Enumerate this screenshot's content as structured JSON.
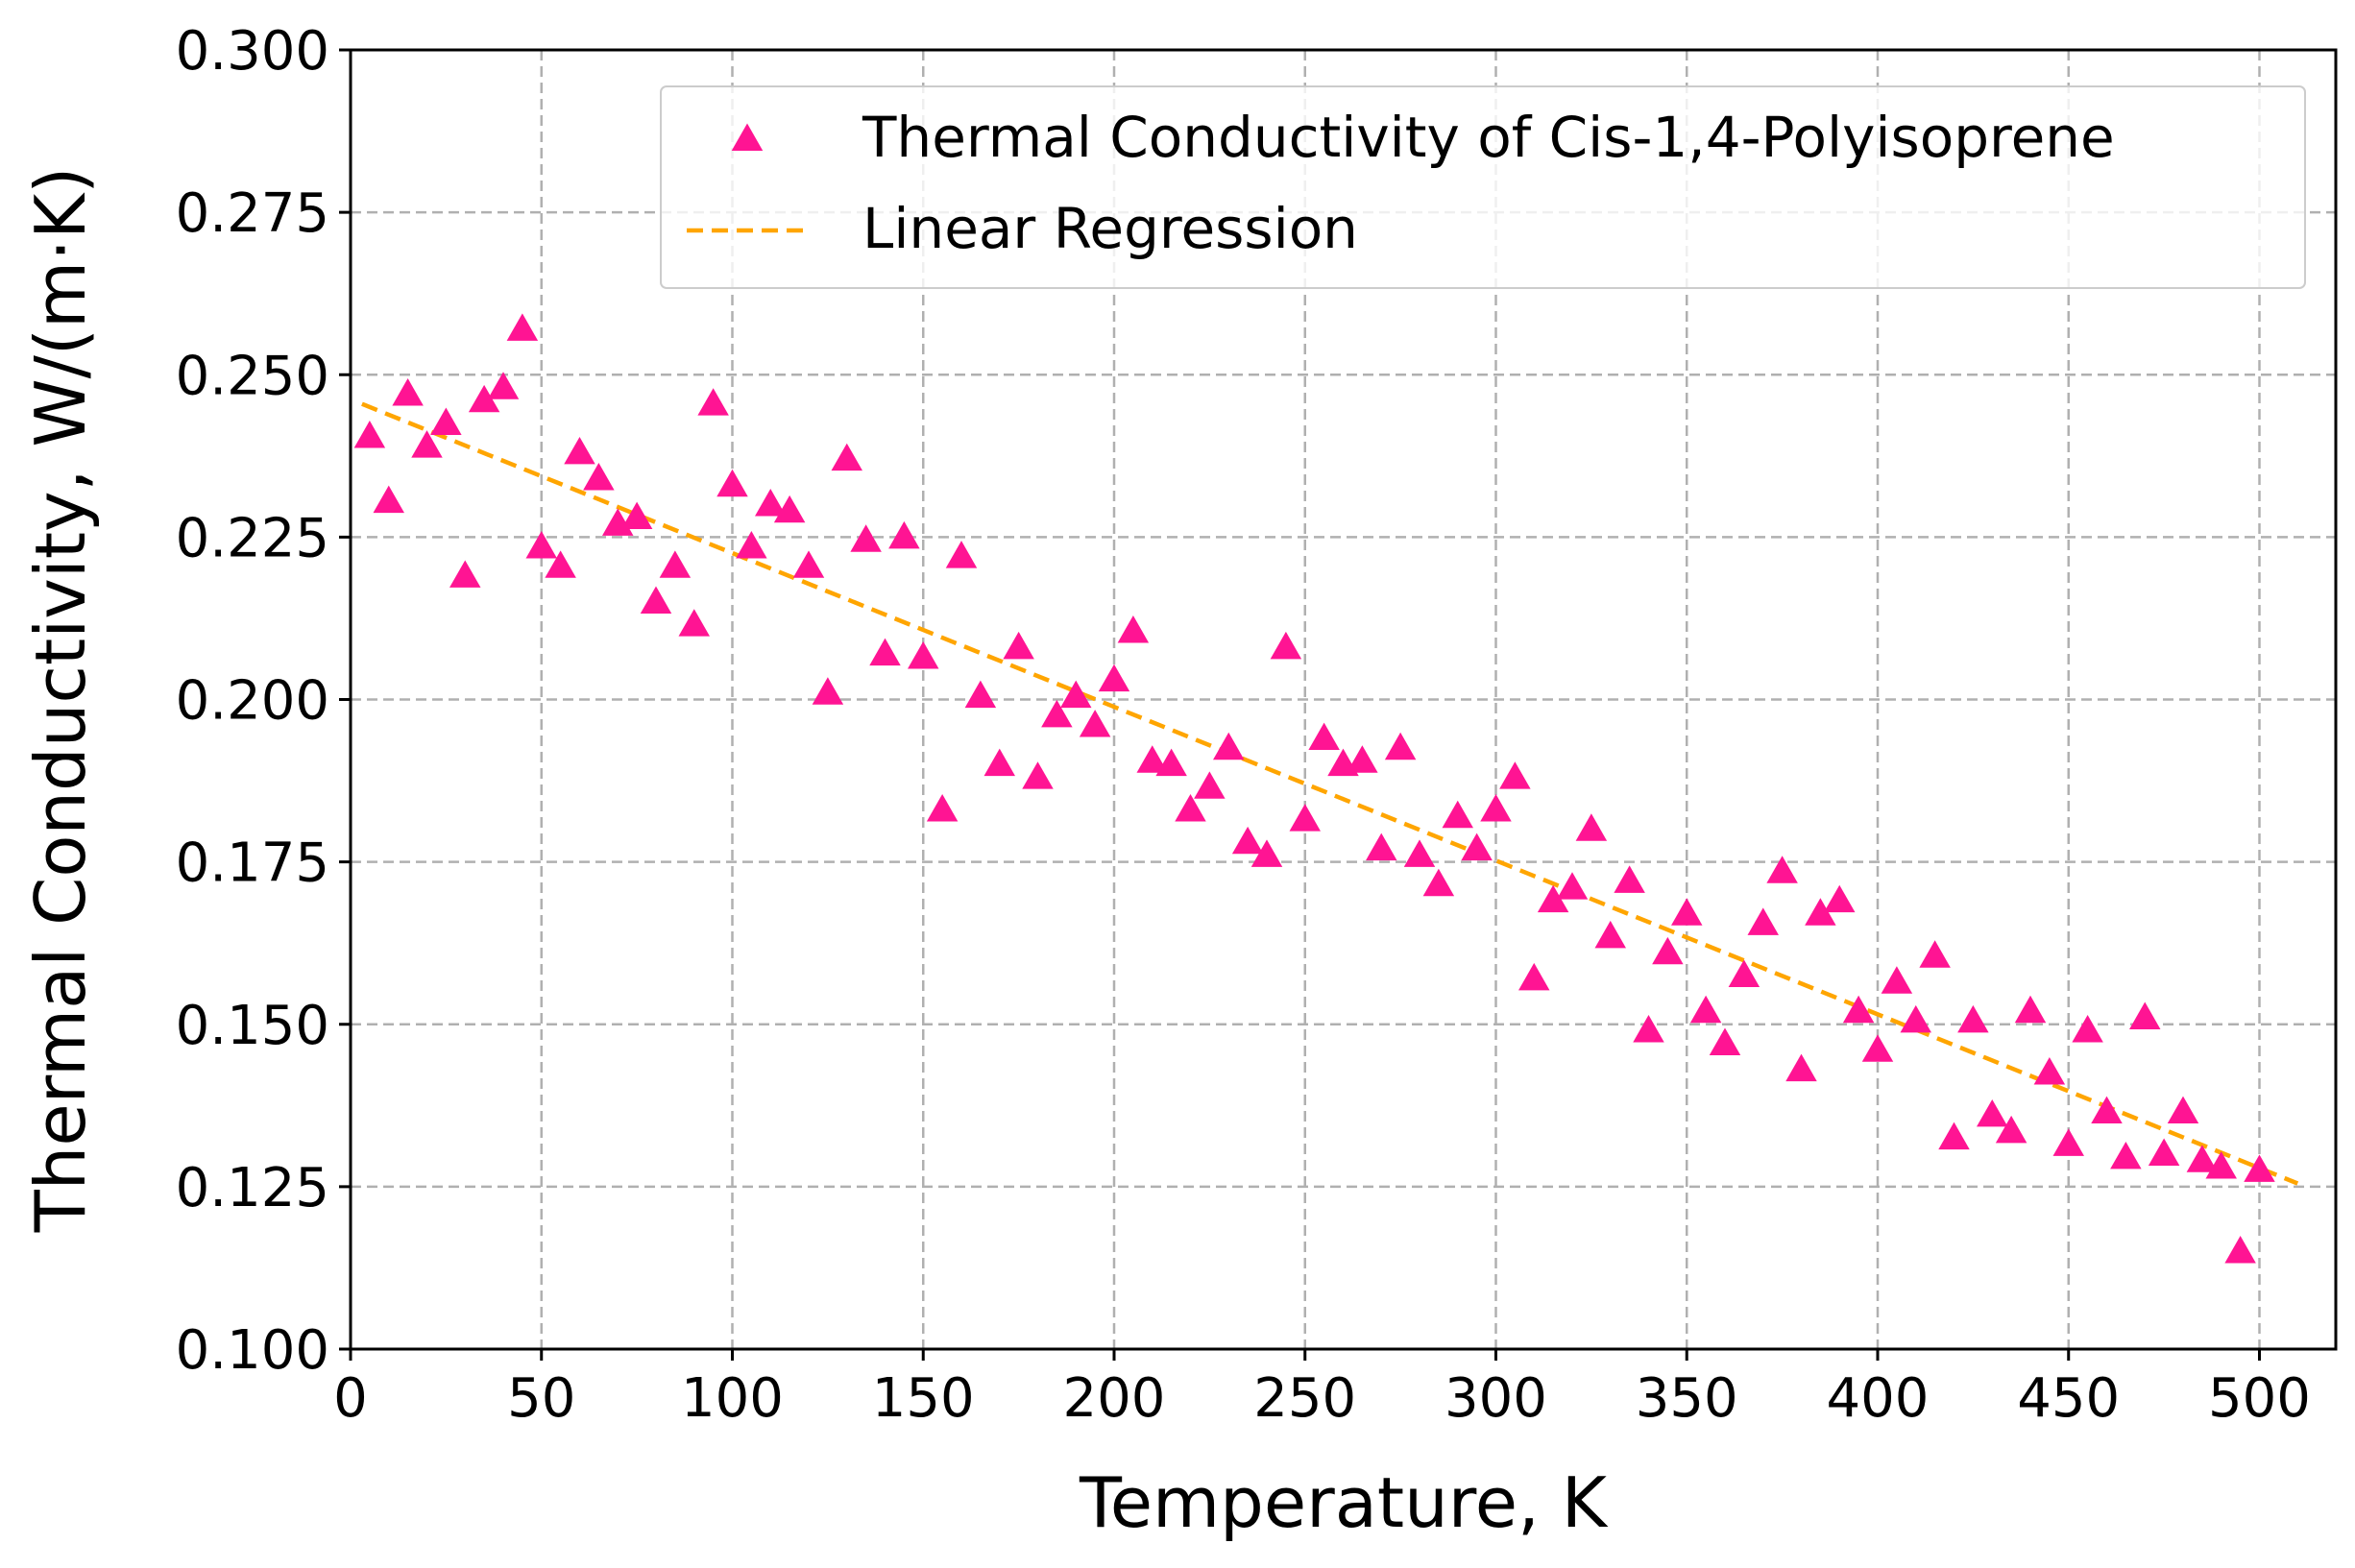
{
  "chart_data": {
    "type": "scatter",
    "title": "",
    "xlabel": "Temperature, K",
    "ylabel": "Thermal Conductivity, W/(m·K)",
    "xlim": [
      0,
      520
    ],
    "ylim": [
      0.1,
      0.3
    ],
    "grid": true,
    "legend_position": "top-right",
    "x_ticks": [
      {
        "value": 0,
        "label": "0"
      },
      {
        "value": 50,
        "label": "50"
      },
      {
        "value": 100,
        "label": "100"
      },
      {
        "value": 150,
        "label": "150"
      },
      {
        "value": 200,
        "label": "200"
      },
      {
        "value": 250,
        "label": "250"
      },
      {
        "value": 300,
        "label": "300"
      },
      {
        "value": 350,
        "label": "350"
      },
      {
        "value": 400,
        "label": "400"
      },
      {
        "value": 450,
        "label": "450"
      },
      {
        "value": 500,
        "label": "500"
      }
    ],
    "y_ticks": [
      {
        "value": 0.1,
        "label": "0.100"
      },
      {
        "value": 0.125,
        "label": "0.125"
      },
      {
        "value": 0.15,
        "label": "0.150"
      },
      {
        "value": 0.175,
        "label": "0.175"
      },
      {
        "value": 0.2,
        "label": "0.200"
      },
      {
        "value": 0.225,
        "label": "0.225"
      },
      {
        "value": 0.25,
        "label": "0.250"
      },
      {
        "value": 0.275,
        "label": "0.275"
      },
      {
        "value": 0.3,
        "label": "0.300"
      }
    ],
    "series": [
      {
        "name": "Thermal Conductivity of Cis-1,4-Polyisoprene",
        "kind": "scatter",
        "marker": "triangle",
        "color": "#ff1493",
        "x": [
          5,
          10,
          15,
          20,
          25,
          30,
          35,
          40,
          45,
          50,
          55,
          60,
          65,
          70,
          75,
          80,
          85,
          90,
          95,
          100,
          105,
          110,
          115,
          120,
          125,
          130,
          135,
          140,
          145,
          150,
          155,
          160,
          165,
          170,
          175,
          180,
          185,
          190,
          195,
          200,
          205,
          210,
          215,
          220,
          225,
          230,
          235,
          240,
          245,
          250,
          255,
          260,
          265,
          270,
          275,
          280,
          285,
          290,
          295,
          300,
          305,
          310,
          315,
          320,
          325,
          330,
          335,
          340,
          345,
          350,
          355,
          360,
          365,
          370,
          375,
          380,
          385,
          390,
          395,
          400,
          405,
          410,
          415,
          420,
          425,
          430,
          435,
          440,
          445,
          450,
          455,
          460,
          465,
          470,
          475,
          480,
          485,
          490,
          495,
          500
        ],
        "y": [
          0.2405,
          0.2305,
          0.247,
          0.239,
          0.2425,
          0.219,
          0.246,
          0.248,
          0.257,
          0.2235,
          0.2205,
          0.238,
          0.234,
          0.227,
          0.228,
          0.215,
          0.2205,
          0.2115,
          0.2455,
          0.233,
          0.2235,
          0.23,
          0.229,
          0.2205,
          0.201,
          0.237,
          0.2245,
          0.207,
          0.225,
          0.2065,
          0.183,
          0.222,
          0.2005,
          0.19,
          0.208,
          0.188,
          0.1975,
          0.2005,
          0.196,
          0.203,
          0.2105,
          0.1905,
          0.19,
          0.183,
          0.1865,
          0.1925,
          0.178,
          0.176,
          0.208,
          0.1815,
          0.194,
          0.19,
          0.1905,
          0.177,
          0.1925,
          0.176,
          0.1715,
          0.182,
          0.177,
          0.183,
          0.188,
          0.157,
          0.169,
          0.171,
          0.18,
          0.1635,
          0.172,
          0.149,
          0.161,
          0.167,
          0.152,
          0.147,
          0.1575,
          0.1655,
          0.1735,
          0.143,
          0.167,
          0.169,
          0.152,
          0.146,
          0.1565,
          0.1505,
          0.1605,
          0.1325,
          0.1505,
          0.136,
          0.1335,
          0.152,
          0.1425,
          0.1315,
          0.149,
          0.1365,
          0.1295,
          0.151,
          0.13,
          0.1365,
          0.129,
          0.128,
          0.115,
          0.1275
        ]
      },
      {
        "name": "Linear Regression",
        "kind": "line",
        "style": "dashed",
        "color": "#ffa500",
        "x": [
          3,
          510
        ],
        "y": [
          0.2455,
          0.1255
        ]
      }
    ]
  }
}
